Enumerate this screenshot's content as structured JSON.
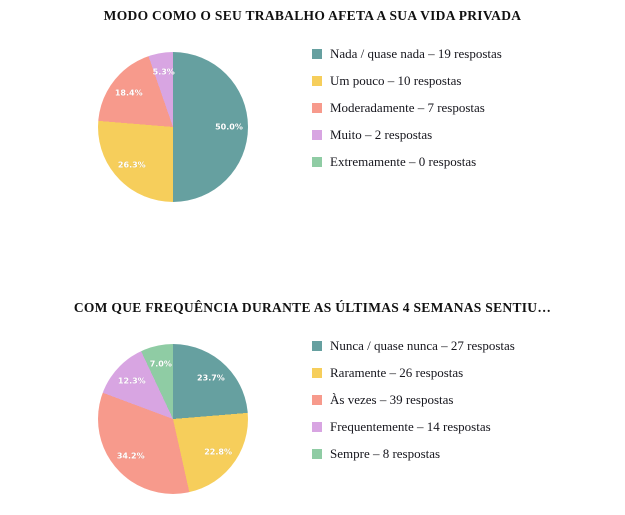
{
  "chart_data": [
    {
      "type": "pie",
      "title": "MODO COMO O SEU TRABALHO AFETA A SUA VIDA PRIVADA",
      "labels": [
        "Nada / quase nada",
        "Um pouco",
        "Moderadamente",
        "Muito",
        "Extremamente"
      ],
      "values": [
        19,
        10,
        7,
        2,
        0
      ],
      "percents": [
        50.0,
        26.3,
        18.4,
        5.3,
        0.0
      ],
      "legend_labels": [
        "Nada / quase nada – 19 respostas",
        "Um pouco – 10 respostas",
        "Moderadamente – 7 respostas",
        "Muito – 2 respostas",
        "Extremamente – 0 respostas"
      ],
      "colors": [
        "#66A0A0",
        "#F6CE5B",
        "#F79A8C",
        "#D8A5E2",
        "#8FCCA4"
      ],
      "legend_position": "right",
      "start_angle": "top-clockwise"
    },
    {
      "type": "pie",
      "title": "COM QUE FREQUÊNCIA DURANTE AS ÚLTIMAS 4 SEMANAS SENTIU…",
      "labels": [
        "Nunca / quase nunca",
        "Raramente",
        "Às vezes",
        "Frequentemente",
        "Sempre"
      ],
      "values": [
        27,
        26,
        39,
        14,
        8
      ],
      "percents": [
        23.7,
        22.8,
        34.2,
        12.3,
        7.0
      ],
      "legend_labels": [
        "Nunca / quase nunca – 27 respostas",
        "Raramente – 26 respostas",
        "Às vezes – 39 respostas",
        "Frequentemente – 14 respostas",
        "Sempre – 8 respostas"
      ],
      "colors": [
        "#66A0A0",
        "#F6CE5B",
        "#F79A8C",
        "#D8A5E2",
        "#8FCCA4"
      ],
      "legend_position": "right",
      "start_angle": "top-clockwise"
    }
  ]
}
